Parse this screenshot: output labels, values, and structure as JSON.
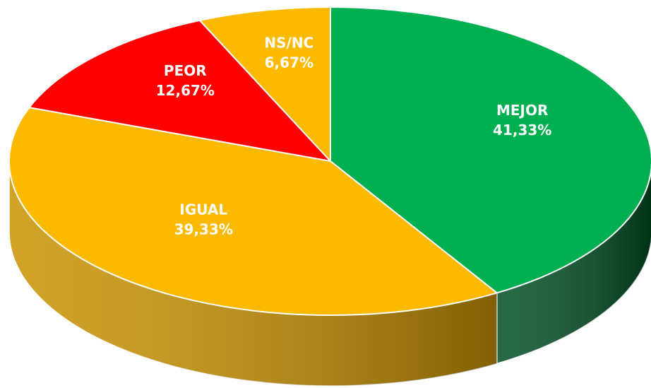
{
  "chart_data": {
    "type": "pie",
    "categories": [
      "MEJOR",
      "IGUAL",
      "PEOR",
      "NS/NC"
    ],
    "values": [
      41.33,
      39.33,
      12.67,
      6.67
    ],
    "value_labels": [
      "41,33%",
      "39,33%",
      "12,67%",
      "6,67%"
    ],
    "colors": [
      "#00b050",
      "#fbb900",
      "#ff0000",
      "#fbb900"
    ],
    "side_colors": [
      "#004d22",
      "#c89200",
      "#a00000",
      "#c89200"
    ]
  }
}
